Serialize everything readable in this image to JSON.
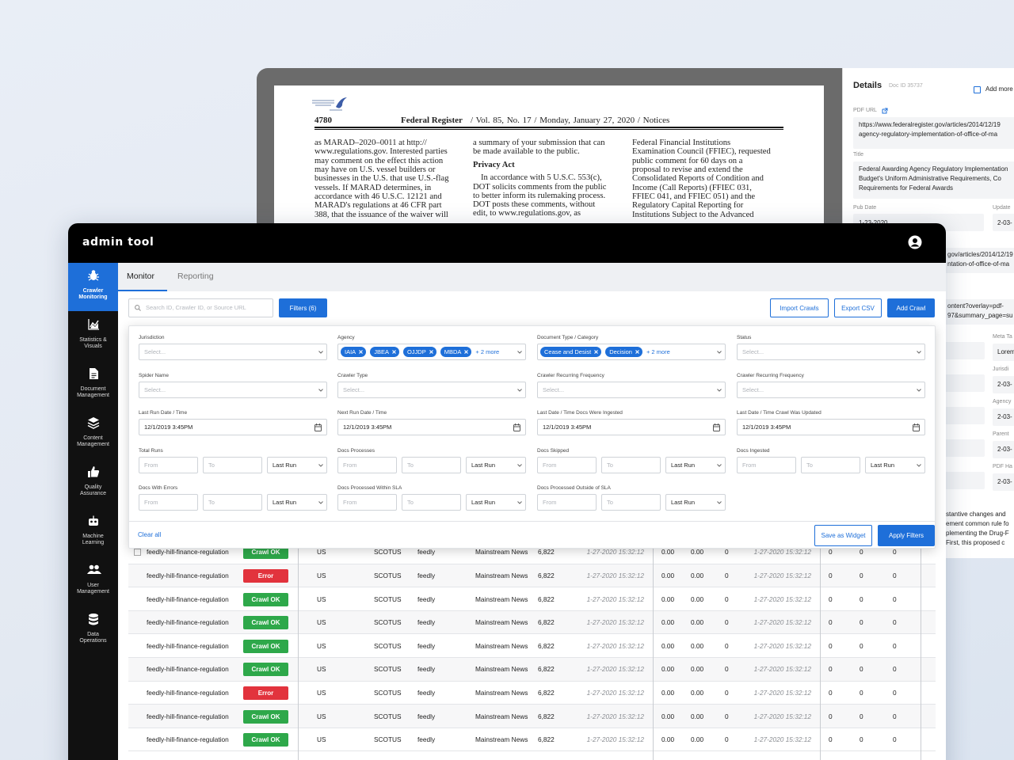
{
  "document": {
    "page_number": "4780",
    "journal": "Federal Register",
    "issue": "/ Vol. 85, No. 17 / Monday, January 27, 2020 / Notices",
    "columns": [
      {
        "lines": [
          "as MARAD–2020–0011 at http://",
          "www.regulations.gov. Interested parties",
          "may comment on the effect this action",
          "may have on U.S. vessel builders or",
          "businesses in the U.S. that use U.S.-flag",
          "vessels. If MARAD determines, in",
          "accordance with 46 U.S.C. 12121 and",
          "MARAD's regulations at 46 CFR part",
          "388, that the issuance of the waiver will"
        ]
      },
      {
        "lines": [
          "a summary of your submission that can",
          "be made available to the public."
        ],
        "heading": "Privacy Act",
        "after": [
          "In accordance with 5 U.S.C. 553(c),",
          "DOT solicits comments from the public",
          "to better inform its rulemaking process.",
          "DOT posts these comments, without",
          "edit, to www.regulations.gov, as"
        ]
      },
      {
        "lines": [
          "Federal Financial Institutions",
          "Examination Council (FFIEC), requested",
          "public comment for 60 days on a",
          "proposal to revise and extend the",
          "Consolidated Reports of Condition and",
          "Income (Call Reports) (FFIEC 031,",
          "FFIEC 041, and FFIEC 051) and the",
          "Regulatory Capital Reporting for",
          "Institutions Subject to the Advanced"
        ]
      }
    ]
  },
  "details": {
    "title": "Details",
    "doc_id": "Doc ID 35737",
    "add_more": "Add more",
    "pdf_url_label": "PDF URL",
    "pdf_url": [
      "https://www.federalregister.gov/articles/2014/12/19",
      "agency-regulatory-implementation-of-office-of-ma"
    ],
    "title_label": "Title",
    "title_lines": [
      "Federal Awarding Agency Regulatory Implementation",
      "Budget's Uniform Administrative Requirements, Co",
      "Requirements for Federal Awards"
    ],
    "pub_date_label": "Pub Date",
    "pub_date": "1-23-2020",
    "update_label": "Update",
    "update": "2-03-",
    "url_fragments": [
      [
        "gov/articles/2014/12/19",
        "ntation-of-office-of-ma"
      ],
      [
        "ontent?overlay=pdf-",
        "97&summary_page=su"
      ]
    ],
    "side_fields": [
      {
        "label": "Meta Ta",
        "value": "Lorem"
      },
      {
        "label": "Jurisdi",
        "value": "2-03-"
      },
      {
        "label": "Agency",
        "value": "2-03-"
      },
      {
        "label": "Parent",
        "value": "2-03-"
      },
      {
        "label": "PDF Ha",
        "value": "2-03-"
      }
    ],
    "text_fragment": [
      "stantive changes and",
      "ement common rule fo",
      "plementing the Drug-F",
      "First, this proposed c"
    ]
  },
  "app": {
    "name": "admin tool"
  },
  "nav": [
    {
      "label": "Crawler Monitoring",
      "active": true
    },
    {
      "label": "Statistics & Visuals",
      "active": false
    },
    {
      "label": "Document Management",
      "active": false
    },
    {
      "label": "Content Management",
      "active": false
    },
    {
      "label": "Quality Assurance",
      "active": false
    },
    {
      "label": "Machine Learning",
      "active": false
    },
    {
      "label": "User Management",
      "active": false
    },
    {
      "label": "Data Operations",
      "active": false
    }
  ],
  "tabs": [
    "Monitor",
    "Reporting"
  ],
  "active_tab": 0,
  "toolbar": {
    "search_placeholder": "Search ID, Crawler ID, or Source URL",
    "filters_button": "Filters (6)",
    "import": "Import Crawls",
    "export": "Export CSV",
    "add": "Add Crawl"
  },
  "filters": {
    "fields": [
      {
        "label": "Jurisdiction",
        "kind": "select",
        "placeholder": "Select..."
      },
      {
        "label": "Agency",
        "kind": "chips",
        "chips": [
          "IAIA",
          "JBEA",
          "OJJDP",
          "MBDA"
        ],
        "more": "+ 2 more"
      },
      {
        "label": "Document Type / Category",
        "kind": "chips",
        "chips": [
          "Cease and Desist",
          "Decision"
        ],
        "more": "+ 2 more"
      },
      {
        "label": "Status",
        "kind": "select",
        "placeholder": "Select..."
      },
      {
        "label": "Spider Name",
        "kind": "select",
        "placeholder": "Select..."
      },
      {
        "label": "Crawler Type",
        "kind": "select",
        "placeholder": "Select..."
      },
      {
        "label": "Crawler Recurring Frequency",
        "kind": "select",
        "placeholder": "Select..."
      },
      {
        "label": "Crawler Recurring Frequency",
        "kind": "select",
        "placeholder": "Select..."
      },
      {
        "label": "Last Run Date / Time",
        "kind": "date",
        "value": "12/1/2019 3:45PM"
      },
      {
        "label": "Next Run Date / Time",
        "kind": "date",
        "value": "12/1/2019 3:45PM"
      },
      {
        "label": "Last  Date / Time Docs Were Ingested",
        "kind": "date",
        "value": "12/1/2019 3:45PM"
      },
      {
        "label": "Last Date / Time Crawl Was Updated",
        "kind": "date",
        "value": "12/1/2019 3:45PM"
      },
      {
        "label": "Total Runs",
        "kind": "range",
        "from": "From",
        "to": "To",
        "period": "Last Run"
      },
      {
        "label": "Docs Processes",
        "kind": "range",
        "from": "From",
        "to": "To",
        "period": "Last Run"
      },
      {
        "label": "Docs Skipped",
        "kind": "range",
        "from": "From",
        "to": "To",
        "period": "Last Run"
      },
      {
        "label": "Docs Ingested",
        "kind": "range",
        "from": "From",
        "to": "To",
        "period": "Last Run"
      },
      {
        "label": "Docs With Errors",
        "kind": "range",
        "from": "From",
        "to": "To",
        "period": "Last Run"
      },
      {
        "label": "Docs Processed Within SLA",
        "kind": "range",
        "from": "From",
        "to": "To",
        "period": "Last Run"
      },
      {
        "label": "Docs Processed Outside of SLA",
        "kind": "range",
        "from": "From",
        "to": "To",
        "period": "Last Run"
      }
    ],
    "clear": "Clear all",
    "save": "Save as Widget",
    "apply": "Apply Filters"
  },
  "table": {
    "status_colors": {
      "Crawl OK": "#2ea84a",
      "Error": "#e2333d"
    },
    "rows": [
      [
        "feedly-hill-finance-regulation",
        "Crawl OK",
        "US",
        "SCOTUS",
        "feedly",
        "Mainstream News",
        "6,822",
        "1-27-2020 15:32:12",
        "0.00",
        "0.00",
        "0",
        "1-27-2020 15:32:12",
        "0",
        "0",
        "0"
      ],
      [
        "feedly-hill-finance-regulation",
        "Error",
        "US",
        "SCOTUS",
        "feedly",
        "Mainstream News",
        "6,822",
        "1-27-2020 15:32:12",
        "0.00",
        "0.00",
        "0",
        "1-27-2020 15:32:12",
        "0",
        "0",
        "0"
      ],
      [
        "feedly-hill-finance-regulation",
        "Crawl OK",
        "US",
        "SCOTUS",
        "feedly",
        "Mainstream News",
        "6,822",
        "1-27-2020 15:32:12",
        "0.00",
        "0.00",
        "0",
        "1-27-2020 15:32:12",
        "0",
        "0",
        "0"
      ],
      [
        "feedly-hill-finance-regulation",
        "Crawl OK",
        "US",
        "SCOTUS",
        "feedly",
        "Mainstream News",
        "6,822",
        "1-27-2020 15:32:12",
        "0.00",
        "0.00",
        "0",
        "1-27-2020 15:32:12",
        "0",
        "0",
        "0"
      ],
      [
        "feedly-hill-finance-regulation",
        "Crawl OK",
        "US",
        "SCOTUS",
        "feedly",
        "Mainstream News",
        "6,822",
        "1-27-2020 15:32:12",
        "0.00",
        "0.00",
        "0",
        "1-27-2020 15:32:12",
        "0",
        "0",
        "0"
      ],
      [
        "feedly-hill-finance-regulation",
        "Crawl OK",
        "US",
        "SCOTUS",
        "feedly",
        "Mainstream News",
        "6,822",
        "1-27-2020 15:32:12",
        "0.00",
        "0.00",
        "0",
        "1-27-2020 15:32:12",
        "0",
        "0",
        "0"
      ],
      [
        "feedly-hill-finance-regulation",
        "Error",
        "US",
        "SCOTUS",
        "feedly",
        "Mainstream News",
        "6,822",
        "1-27-2020 15:32:12",
        "0.00",
        "0.00",
        "0",
        "1-27-2020 15:32:12",
        "0",
        "0",
        "0"
      ],
      [
        "feedly-hill-finance-regulation",
        "Crawl OK",
        "US",
        "SCOTUS",
        "feedly",
        "Mainstream News",
        "6,822",
        "1-27-2020 15:32:12",
        "0.00",
        "0.00",
        "0",
        "1-27-2020 15:32:12",
        "0",
        "0",
        "0"
      ],
      [
        "feedly-hill-finance-regulation",
        "Crawl OK",
        "US",
        "SCOTUS",
        "feedly",
        "Mainstream News",
        "6,822",
        "1-27-2020 15:32:12",
        "0.00",
        "0.00",
        "0",
        "1-27-2020 15:32:12",
        "0",
        "0",
        "0"
      ]
    ]
  }
}
